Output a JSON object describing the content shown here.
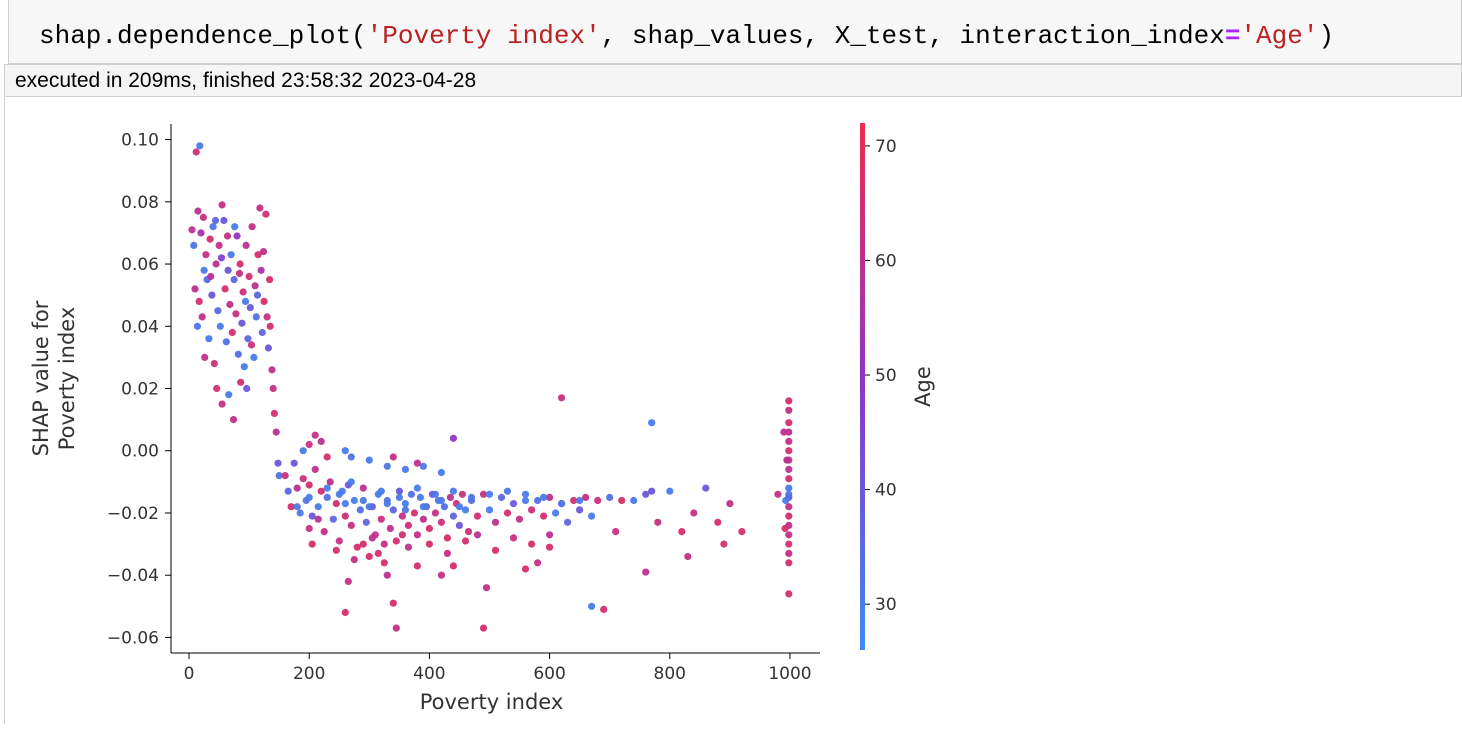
{
  "cell": {
    "code_tokens": [
      {
        "text": "shap.dependence_plot(",
        "cls": ""
      },
      {
        "text": "'Poverty index'",
        "cls": "tok-str"
      },
      {
        "text": ", shap_values, X_test, interaction_index",
        "cls": ""
      },
      {
        "text": "=",
        "cls": "tok-op"
      },
      {
        "text": "'Age'",
        "cls": "tok-str"
      },
      {
        "text": ")",
        "cls": ""
      }
    ],
    "exec_info": "executed in 209ms, finished 23:58:32 2023-04-28"
  },
  "chart_data": {
    "type": "scatter",
    "xlabel": "Poverty index",
    "ylabel_line1": "SHAP value for",
    "ylabel_line2": "Poverty index",
    "xlim": [
      -30,
      1050
    ],
    "ylim": [
      -0.065,
      0.105
    ],
    "x_ticks": [
      0,
      200,
      400,
      600,
      800,
      1000
    ],
    "y_ticks": [
      0.1,
      0.08,
      0.06,
      0.04,
      0.02,
      0.0,
      -0.02,
      -0.04,
      -0.06
    ],
    "y_tick_labels": [
      "0.10",
      "0.08",
      "0.06",
      "0.04",
      "0.02",
      "0.00",
      "−0.02",
      "−0.04",
      "−0.06"
    ],
    "colorbar": {
      "label": "Age",
      "range": [
        26,
        72
      ],
      "ticks": [
        70,
        60,
        50,
        40,
        30
      ],
      "color_low": "#3b8bf0",
      "color_mid": "#8c36c8",
      "color_high": "#ef2b4f"
    },
    "points": [
      [
        12,
        0.096,
        65
      ],
      [
        18,
        0.098,
        30
      ],
      [
        5,
        0.071,
        60
      ],
      [
        8,
        0.066,
        32
      ],
      [
        15,
        0.077,
        60
      ],
      [
        20,
        0.07,
        55
      ],
      [
        25,
        0.058,
        30
      ],
      [
        28,
        0.063,
        62
      ],
      [
        30,
        0.055,
        35
      ],
      [
        35,
        0.068,
        66
      ],
      [
        38,
        0.05,
        40
      ],
      [
        40,
        0.072,
        32
      ],
      [
        45,
        0.06,
        60
      ],
      [
        48,
        0.045,
        35
      ],
      [
        50,
        0.066,
        62
      ],
      [
        52,
        0.04,
        30
      ],
      [
        55,
        0.079,
        62
      ],
      [
        58,
        0.074,
        40
      ],
      [
        60,
        0.052,
        66
      ],
      [
        62,
        0.035,
        33
      ],
      [
        65,
        0.058,
        40
      ],
      [
        68,
        0.047,
        60
      ],
      [
        70,
        0.063,
        30
      ],
      [
        72,
        0.038,
        66
      ],
      [
        75,
        0.055,
        36
      ],
      [
        78,
        0.044,
        62
      ],
      [
        80,
        0.069,
        50
      ],
      [
        82,
        0.031,
        33
      ],
      [
        85,
        0.06,
        66
      ],
      [
        88,
        0.041,
        40
      ],
      [
        90,
        0.051,
        64
      ],
      [
        92,
        0.027,
        30
      ],
      [
        95,
        0.066,
        60
      ],
      [
        98,
        0.036,
        35
      ],
      [
        100,
        0.056,
        66
      ],
      [
        102,
        0.046,
        40
      ],
      [
        105,
        0.072,
        62
      ],
      [
        108,
        0.03,
        30
      ],
      [
        110,
        0.053,
        60
      ],
      [
        112,
        0.043,
        33
      ],
      [
        115,
        0.063,
        66
      ],
      [
        118,
        0.078,
        62
      ],
      [
        120,
        0.058,
        55
      ],
      [
        122,
        0.038,
        36
      ],
      [
        125,
        0.048,
        66
      ],
      [
        128,
        0.076,
        64
      ],
      [
        130,
        0.043,
        62
      ],
      [
        132,
        0.033,
        40
      ],
      [
        135,
        0.04,
        66
      ],
      [
        138,
        0.026,
        60
      ],
      [
        140,
        0.02,
        62
      ],
      [
        142,
        0.012,
        66
      ],
      [
        145,
        0.006,
        60
      ],
      [
        148,
        -0.004,
        40
      ],
      [
        150,
        -0.008,
        33
      ],
      [
        22,
        0.043,
        62
      ],
      [
        26,
        0.03,
        60
      ],
      [
        33,
        0.036,
        30
      ],
      [
        42,
        0.028,
        64
      ],
      [
        46,
        0.02,
        66
      ],
      [
        55,
        0.015,
        62
      ],
      [
        66,
        0.018,
        30
      ],
      [
        74,
        0.01,
        60
      ],
      [
        86,
        0.022,
        66
      ],
      [
        96,
        0.02,
        40
      ],
      [
        10,
        0.052,
        60
      ],
      [
        14,
        0.04,
        32
      ],
      [
        17,
        0.048,
        66
      ],
      [
        24,
        0.075,
        62
      ],
      [
        36,
        0.056,
        58
      ],
      [
        44,
        0.074,
        36
      ],
      [
        54,
        0.062,
        46
      ],
      [
        64,
        0.069,
        62
      ],
      [
        76,
        0.072,
        30
      ],
      [
        84,
        0.057,
        62
      ],
      [
        94,
        0.048,
        30
      ],
      [
        104,
        0.034,
        64
      ],
      [
        114,
        0.05,
        36
      ],
      [
        124,
        0.064,
        60
      ],
      [
        134,
        0.055,
        66
      ],
      [
        160,
        -0.008,
        62
      ],
      [
        165,
        -0.013,
        35
      ],
      [
        170,
        -0.018,
        66
      ],
      [
        175,
        -0.004,
        40
      ],
      [
        180,
        -0.012,
        60
      ],
      [
        185,
        -0.02,
        30
      ],
      [
        190,
        -0.009,
        64
      ],
      [
        195,
        -0.016,
        32
      ],
      [
        200,
        -0.011,
        66
      ],
      [
        205,
        -0.021,
        40
      ],
      [
        210,
        -0.006,
        60
      ],
      [
        215,
        -0.018,
        30
      ],
      [
        220,
        -0.013,
        66
      ],
      [
        225,
        -0.026,
        62
      ],
      [
        230,
        -0.015,
        33
      ],
      [
        235,
        -0.01,
        60
      ],
      [
        240,
        -0.022,
        36
      ],
      [
        245,
        -0.017,
        66
      ],
      [
        250,
        -0.029,
        62
      ],
      [
        255,
        -0.013,
        30
      ],
      [
        260,
        -0.021,
        64
      ],
      [
        265,
        -0.011,
        40
      ],
      [
        270,
        -0.024,
        62
      ],
      [
        275,
        -0.016,
        30
      ],
      [
        280,
        -0.031,
        66
      ],
      [
        285,
        -0.019,
        33
      ],
      [
        290,
        -0.012,
        60
      ],
      [
        295,
        -0.023,
        36
      ],
      [
        300,
        -0.034,
        66
      ],
      [
        305,
        -0.018,
        40
      ],
      [
        310,
        -0.027,
        62
      ],
      [
        315,
        -0.014,
        30
      ],
      [
        320,
        -0.022,
        64
      ],
      [
        325,
        -0.036,
        66
      ],
      [
        330,
        -0.016,
        33
      ],
      [
        335,
        -0.025,
        60
      ],
      [
        340,
        -0.019,
        36
      ],
      [
        345,
        -0.029,
        66
      ],
      [
        350,
        -0.013,
        40
      ],
      [
        355,
        -0.021,
        62
      ],
      [
        360,
        -0.017,
        30
      ],
      [
        365,
        -0.024,
        64
      ],
      [
        370,
        -0.014,
        33
      ],
      [
        375,
        -0.02,
        66
      ],
      [
        380,
        -0.027,
        62
      ],
      [
        385,
        -0.015,
        30
      ],
      [
        390,
        -0.022,
        60
      ],
      [
        395,
        -0.018,
        36
      ],
      [
        400,
        -0.025,
        66
      ],
      [
        405,
        -0.014,
        40
      ],
      [
        410,
        -0.02,
        62
      ],
      [
        415,
        -0.016,
        30
      ],
      [
        420,
        -0.023,
        64
      ],
      [
        425,
        -0.018,
        33
      ],
      [
        430,
        -0.028,
        66
      ],
      [
        435,
        -0.015,
        60
      ],
      [
        440,
        -0.021,
        36
      ],
      [
        445,
        -0.017,
        66
      ],
      [
        450,
        -0.024,
        40
      ],
      [
        455,
        -0.014,
        62
      ],
      [
        460,
        -0.019,
        30
      ],
      [
        465,
        -0.026,
        64
      ],
      [
        470,
        -0.016,
        33
      ],
      [
        480,
        -0.021,
        66
      ],
      [
        490,
        -0.014,
        62
      ],
      [
        500,
        -0.019,
        30
      ],
      [
        510,
        -0.023,
        60
      ],
      [
        520,
        -0.015,
        36
      ],
      [
        530,
        -0.02,
        66
      ],
      [
        540,
        -0.017,
        40
      ],
      [
        550,
        -0.022,
        62
      ],
      [
        560,
        -0.014,
        30
      ],
      [
        570,
        -0.019,
        64
      ],
      [
        580,
        -0.016,
        33
      ],
      [
        590,
        -0.021,
        66
      ],
      [
        600,
        -0.015,
        62
      ],
      [
        610,
        -0.02,
        30
      ],
      [
        620,
        -0.017,
        60
      ],
      [
        630,
        -0.023,
        36
      ],
      [
        640,
        -0.016,
        66
      ],
      [
        650,
        -0.019,
        40
      ],
      [
        660,
        -0.015,
        62
      ],
      [
        670,
        -0.021,
        30
      ],
      [
        680,
        -0.016,
        64
      ],
      [
        700,
        -0.015,
        33
      ],
      [
        710,
        -0.026,
        62
      ],
      [
        720,
        -0.016,
        66
      ],
      [
        740,
        -0.016,
        30
      ],
      [
        760,
        -0.014,
        40
      ],
      [
        780,
        -0.023,
        62
      ],
      [
        800,
        -0.013,
        30
      ],
      [
        820,
        -0.026,
        66
      ],
      [
        840,
        -0.02,
        62
      ],
      [
        860,
        -0.012,
        40
      ],
      [
        880,
        -0.023,
        66
      ],
      [
        900,
        -0.017,
        62
      ],
      [
        920,
        -0.026,
        66
      ],
      [
        230,
        -0.012,
        30
      ],
      [
        250,
        -0.014,
        32
      ],
      [
        270,
        -0.01,
        30
      ],
      [
        290,
        -0.016,
        31
      ],
      [
        320,
        -0.013,
        30
      ],
      [
        350,
        -0.015,
        31
      ],
      [
        380,
        -0.012,
        30
      ],
      [
        410,
        -0.014,
        31
      ],
      [
        440,
        -0.013,
        30
      ],
      [
        470,
        -0.015,
        32
      ],
      [
        500,
        -0.014,
        30
      ],
      [
        530,
        -0.013,
        31
      ],
      [
        560,
        -0.016,
        30
      ],
      [
        590,
        -0.015,
        31
      ],
      [
        620,
        -0.017,
        30
      ],
      [
        650,
        -0.016,
        32
      ],
      [
        200,
        -0.015,
        30
      ],
      [
        180,
        -0.018,
        31
      ],
      [
        260,
        -0.017,
        30
      ],
      [
        300,
        -0.018,
        31
      ],
      [
        330,
        -0.017,
        30
      ],
      [
        360,
        -0.019,
        32
      ],
      [
        390,
        -0.018,
        30
      ],
      [
        420,
        -0.016,
        31
      ],
      [
        450,
        -0.018,
        30
      ],
      [
        260,
        0.0,
        30
      ],
      [
        270,
        -0.002,
        32
      ],
      [
        300,
        -0.003,
        30
      ],
      [
        330,
        -0.005,
        31
      ],
      [
        360,
        -0.006,
        30
      ],
      [
        390,
        -0.005,
        32
      ],
      [
        420,
        -0.007,
        30
      ],
      [
        440,
        0.004,
        50
      ],
      [
        380,
        -0.004,
        60
      ],
      [
        340,
        -0.002,
        62
      ],
      [
        210,
        0.005,
        62
      ],
      [
        220,
        0.003,
        60
      ],
      [
        230,
        -0.002,
        66
      ],
      [
        190,
        0.0,
        30
      ],
      [
        200,
        0.002,
        64
      ],
      [
        260,
        -0.052,
        66
      ],
      [
        265,
        -0.042,
        62
      ],
      [
        330,
        -0.04,
        60
      ],
      [
        340,
        -0.049,
        66
      ],
      [
        345,
        -0.057,
        62
      ],
      [
        380,
        -0.037,
        66
      ],
      [
        420,
        -0.04,
        62
      ],
      [
        440,
        -0.037,
        66
      ],
      [
        490,
        -0.057,
        66
      ],
      [
        495,
        -0.044,
        62
      ],
      [
        560,
        -0.038,
        66
      ],
      [
        580,
        -0.036,
        62
      ],
      [
        600,
        -0.031,
        66
      ],
      [
        670,
        -0.05,
        30
      ],
      [
        690,
        -0.051,
        66
      ],
      [
        760,
        -0.039,
        60
      ],
      [
        770,
        -0.013,
        40
      ],
      [
        830,
        -0.034,
        62
      ],
      [
        890,
        -0.03,
        66
      ],
      [
        620,
        0.017,
        62
      ],
      [
        770,
        0.009,
        30
      ],
      [
        200,
        -0.025,
        62
      ],
      [
        205,
        -0.03,
        66
      ],
      [
        215,
        -0.022,
        60
      ],
      [
        245,
        -0.032,
        66
      ],
      [
        275,
        -0.035,
        62
      ],
      [
        290,
        -0.03,
        66
      ],
      [
        305,
        -0.028,
        60
      ],
      [
        315,
        -0.033,
        66
      ],
      [
        325,
        -0.03,
        62
      ],
      [
        355,
        -0.027,
        66
      ],
      [
        365,
        -0.031,
        60
      ],
      [
        400,
        -0.03,
        66
      ],
      [
        430,
        -0.033,
        62
      ],
      [
        460,
        -0.029,
        66
      ],
      [
        480,
        -0.027,
        60
      ],
      [
        510,
        -0.032,
        66
      ],
      [
        540,
        -0.028,
        62
      ],
      [
        570,
        -0.03,
        66
      ],
      [
        600,
        -0.027,
        60
      ],
      [
        998,
        0.016,
        66
      ],
      [
        998,
        0.013,
        62
      ],
      [
        998,
        0.009,
        66
      ],
      [
        998,
        0.006,
        60
      ],
      [
        998,
        0.003,
        62
      ],
      [
        998,
        0.0,
        66
      ],
      [
        998,
        -0.003,
        62
      ],
      [
        998,
        -0.006,
        60
      ],
      [
        998,
        -0.009,
        66
      ],
      [
        998,
        -0.012,
        30
      ],
      [
        998,
        -0.015,
        40
      ],
      [
        998,
        -0.018,
        62
      ],
      [
        998,
        -0.021,
        66
      ],
      [
        998,
        -0.024,
        60
      ],
      [
        998,
        -0.027,
        62
      ],
      [
        998,
        -0.03,
        66
      ],
      [
        998,
        -0.033,
        62
      ],
      [
        998,
        -0.036,
        66
      ],
      [
        998,
        -0.046,
        66
      ],
      [
        998,
        -0.014,
        32
      ],
      [
        990,
        0.006,
        62
      ],
      [
        993,
        -0.016,
        30
      ],
      [
        992,
        -0.025,
        66
      ],
      [
        995,
        -0.003,
        60
      ],
      [
        980,
        -0.014,
        62
      ]
    ]
  }
}
